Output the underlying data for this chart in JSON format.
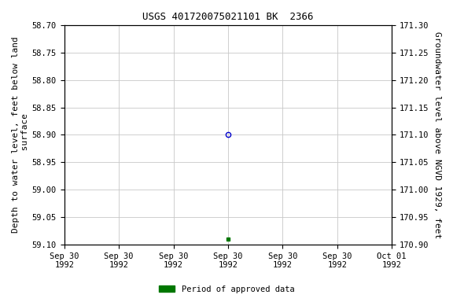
{
  "title": "USGS 401720075021101 BK  2366",
  "ylabel_left": "Depth to water level, feet below land\n surface",
  "ylabel_right": "Groundwater level above NGVD 1929, feet",
  "ylim_left": [
    58.7,
    59.1
  ],
  "ylim_right": [
    171.3,
    170.9
  ],
  "yticks_left": [
    58.7,
    58.75,
    58.8,
    58.85,
    58.9,
    58.95,
    59.0,
    59.05,
    59.1
  ],
  "yticks_right": [
    171.3,
    171.25,
    171.2,
    171.15,
    171.1,
    171.05,
    171.0,
    170.95,
    170.9
  ],
  "data_open_value": 58.9,
  "data_filled_value": 59.09,
  "open_marker_color": "#0000cc",
  "filled_marker_color": "#007700",
  "background_color": "#ffffff",
  "grid_color": "#c8c8c8",
  "legend_label": "Period of approved data",
  "legend_color": "#007700",
  "title_fontsize": 9,
  "tick_fontsize": 7.5,
  "label_fontsize": 8
}
